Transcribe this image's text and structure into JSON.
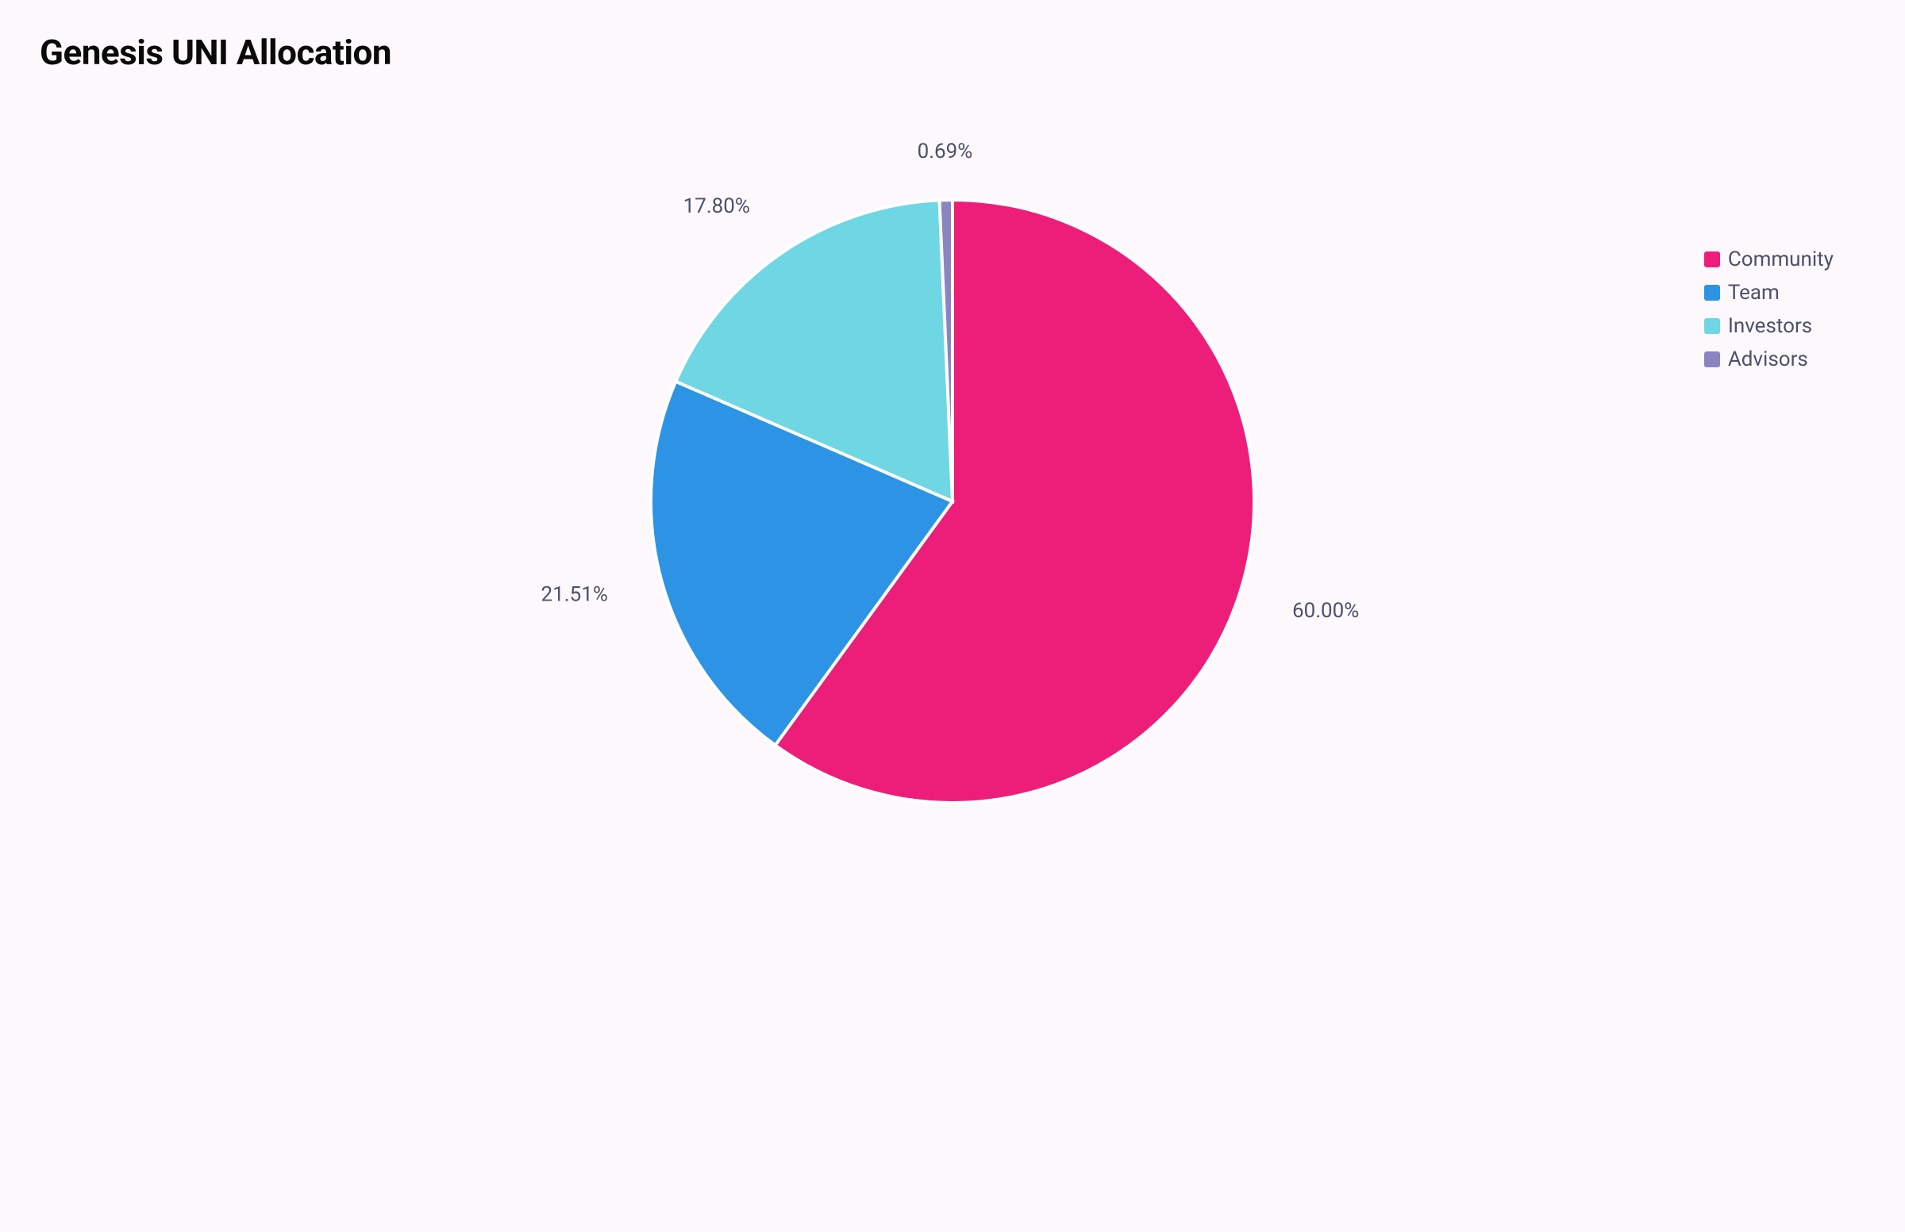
{
  "chart": {
    "type": "pie",
    "title": "Genesis UNI Allocation",
    "title_fontsize": 44,
    "title_color": "#0a0a0a",
    "background_color": "#fdf8fc",
    "label_color": "#4b5269",
    "label_fontsize": 26,
    "legend_fontsize": 26,
    "stroke_color": "#ffffff",
    "stroke_width": 4,
    "radius": 380,
    "start_angle_deg": 0,
    "slices": [
      {
        "label": "Community",
        "value": 60.0,
        "value_text": "60.00%",
        "color": "#ed1e79"
      },
      {
        "label": "Team",
        "value": 21.51,
        "value_text": "21.51%",
        "color": "#2d94e5"
      },
      {
        "label": "Investors",
        "value": 17.8,
        "value_text": "17.80%",
        "color": "#6fd6e4"
      },
      {
        "label": "Advisors",
        "value": 0.69,
        "value_text": "0.69%",
        "color": "#8a85c0"
      }
    ],
    "legend_position": "right"
  }
}
